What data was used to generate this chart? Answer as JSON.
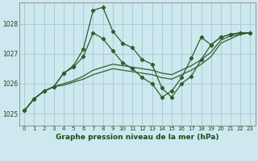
{
  "background_color": "#cde8ee",
  "grid_color": "#aacdd8",
  "line_color": "#2d5e2d",
  "title": "Graphe pression niveau de la mer (hPa)",
  "xlim": [
    -0.5,
    23.5
  ],
  "ylim": [
    1024.6,
    1028.7
  ],
  "yticks": [
    1025,
    1026,
    1027,
    1028
  ],
  "xticks": [
    0,
    1,
    2,
    3,
    4,
    5,
    6,
    7,
    8,
    9,
    10,
    11,
    12,
    13,
    14,
    15,
    16,
    17,
    18,
    19,
    20,
    21,
    22,
    23
  ],
  "series": [
    {
      "y": [
        1025.1,
        1025.5,
        1025.75,
        1025.9,
        1026.35,
        1026.6,
        1027.15,
        1028.45,
        1028.55,
        1027.75,
        1027.35,
        1027.2,
        1026.8,
        1026.65,
        1025.85,
        1025.55,
        1026.0,
        1026.25,
        1026.8,
        1027.3,
        1027.55,
        1027.65,
        1027.7,
        1027.7
      ],
      "marker": true
    },
    {
      "y": [
        1025.1,
        1025.5,
        1025.75,
        1025.9,
        1026.35,
        1026.55,
        1026.9,
        1027.7,
        1027.5,
        1027.1,
        1026.7,
        1026.5,
        1026.2,
        1026.0,
        1025.55,
        1025.75,
        1026.2,
        1026.85,
        1027.55,
        1027.3,
        1027.55,
        1027.65,
        1027.7,
        1027.7
      ],
      "marker": true
    },
    {
      "y": [
        1025.1,
        1025.5,
        1025.75,
        1025.9,
        1026.0,
        1026.1,
        1026.25,
        1026.45,
        1026.55,
        1026.65,
        1026.6,
        1026.55,
        1026.5,
        1026.45,
        1026.35,
        1026.3,
        1026.45,
        1026.6,
        1026.8,
        1027.05,
        1027.45,
        1027.6,
        1027.65,
        1027.7
      ],
      "marker": false
    },
    {
      "y": [
        1025.1,
        1025.5,
        1025.75,
        1025.9,
        1025.95,
        1026.05,
        1026.15,
        1026.3,
        1026.4,
        1026.5,
        1026.45,
        1026.4,
        1026.35,
        1026.3,
        1026.2,
        1026.15,
        1026.3,
        1026.45,
        1026.65,
        1026.9,
        1027.35,
        1027.5,
        1027.65,
        1027.7
      ],
      "marker": false
    }
  ]
}
